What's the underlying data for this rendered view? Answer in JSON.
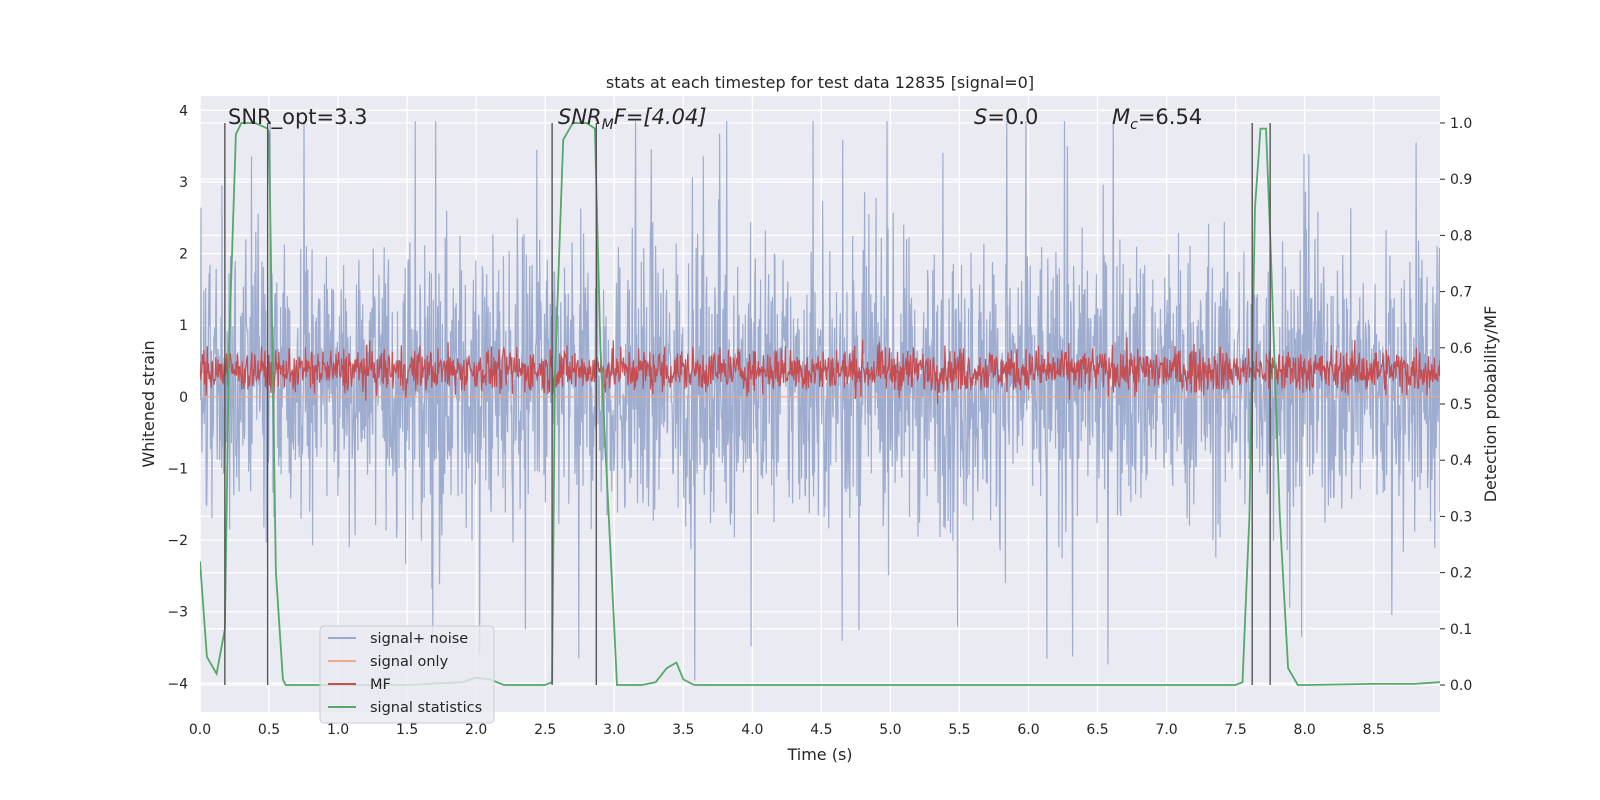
{
  "chart_data": {
    "type": "line",
    "title": "stats at each timestep for test data 12835 [signal=0]",
    "xlabel": "Time (s)",
    "ylabel_left": "Whitened strain",
    "ylabel_right": "Detection probability/MF",
    "xlim": [
      0.0,
      8.98
    ],
    "ylim_left": [
      -4.4,
      4.2
    ],
    "ylim_right": [
      -0.048,
      1.048
    ],
    "x_ticks": [
      "0.0",
      "0.5",
      "1.0",
      "1.5",
      "2.0",
      "2.5",
      "3.0",
      "3.5",
      "4.0",
      "4.5",
      "5.0",
      "5.5",
      "6.0",
      "6.5",
      "7.0",
      "7.5",
      "8.0",
      "8.5"
    ],
    "y_ticks_left": [
      "4",
      "3",
      "2",
      "1",
      "0",
      "−1",
      "−2",
      "−3",
      "−4"
    ],
    "y_ticks_right": [
      "1.0",
      "0.9",
      "0.8",
      "0.7",
      "0.6",
      "0.5",
      "0.4",
      "0.3",
      "0.2",
      "0.1",
      "0.0"
    ],
    "grid": true,
    "legend_position": "lower-left",
    "annotations": {
      "snr_opt": "SNR_opt=3.3",
      "snr_mf_main": "SNR",
      "snr_mf_sub": "M",
      "snr_mf_rest": "F=[4.04]",
      "s_var": "S",
      "s_rest": "=0.0",
      "mc_var": "M",
      "mc_sub": "c",
      "mc_rest": "=6.54"
    },
    "vertical_lines_s": [
      0.18,
      0.49,
      2.55,
      2.87,
      7.62,
      7.75
    ],
    "series": [
      {
        "name": "signal+ noise",
        "color": "#9aa9cc",
        "axis": "left",
        "kind": "noise",
        "approx_band": [
          -1.6,
          2.0
        ],
        "approx_extremes": [
          -4.0,
          3.85
        ]
      },
      {
        "name": "signal only",
        "color": "#e9a98a",
        "axis": "left",
        "kind": "flat",
        "value": 0.0
      },
      {
        "name": "MF",
        "color": "#c44e52",
        "axis": "right",
        "kind": "noise",
        "approx_band": [
          0.52,
          0.6
        ],
        "approx_extremes": [
          0.5,
          0.63
        ]
      },
      {
        "name": "signal statistics",
        "color": "#55a868",
        "axis": "right",
        "kind": "line",
        "x": [
          0.0,
          0.05,
          0.12,
          0.18,
          0.21,
          0.26,
          0.3,
          0.4,
          0.49,
          0.5,
          0.55,
          0.6,
          0.62,
          0.7,
          1.0,
          1.5,
          1.9,
          2.0,
          2.1,
          2.2,
          2.5,
          2.55,
          2.57,
          2.63,
          2.7,
          2.8,
          2.86,
          2.9,
          3.0,
          3.02,
          3.1,
          3.2,
          3.3,
          3.38,
          3.45,
          3.5,
          3.58,
          3.7,
          4.0,
          5.0,
          6.0,
          7.0,
          7.5,
          7.55,
          7.6,
          7.64,
          7.68,
          7.72,
          7.75,
          7.82,
          7.88,
          7.95,
          8.0,
          8.5,
          8.8,
          8.98
        ],
        "y": [
          0.22,
          0.05,
          0.02,
          0.1,
          0.6,
          0.98,
          1.0,
          1.0,
          0.99,
          0.98,
          0.2,
          0.01,
          0.0,
          0.0,
          0.0,
          0.0,
          0.005,
          0.013,
          0.01,
          0.0,
          0.0,
          0.005,
          0.55,
          0.97,
          1.0,
          1.0,
          0.99,
          0.6,
          0.1,
          0.0,
          0.0,
          0.0,
          0.005,
          0.03,
          0.04,
          0.01,
          0.0,
          0.0,
          0.0,
          0.0,
          0.0,
          0.0,
          0.0,
          0.005,
          0.3,
          0.85,
          0.99,
          0.99,
          0.8,
          0.3,
          0.03,
          0.0,
          0.0,
          0.002,
          0.002,
          0.005
        ]
      }
    ]
  }
}
